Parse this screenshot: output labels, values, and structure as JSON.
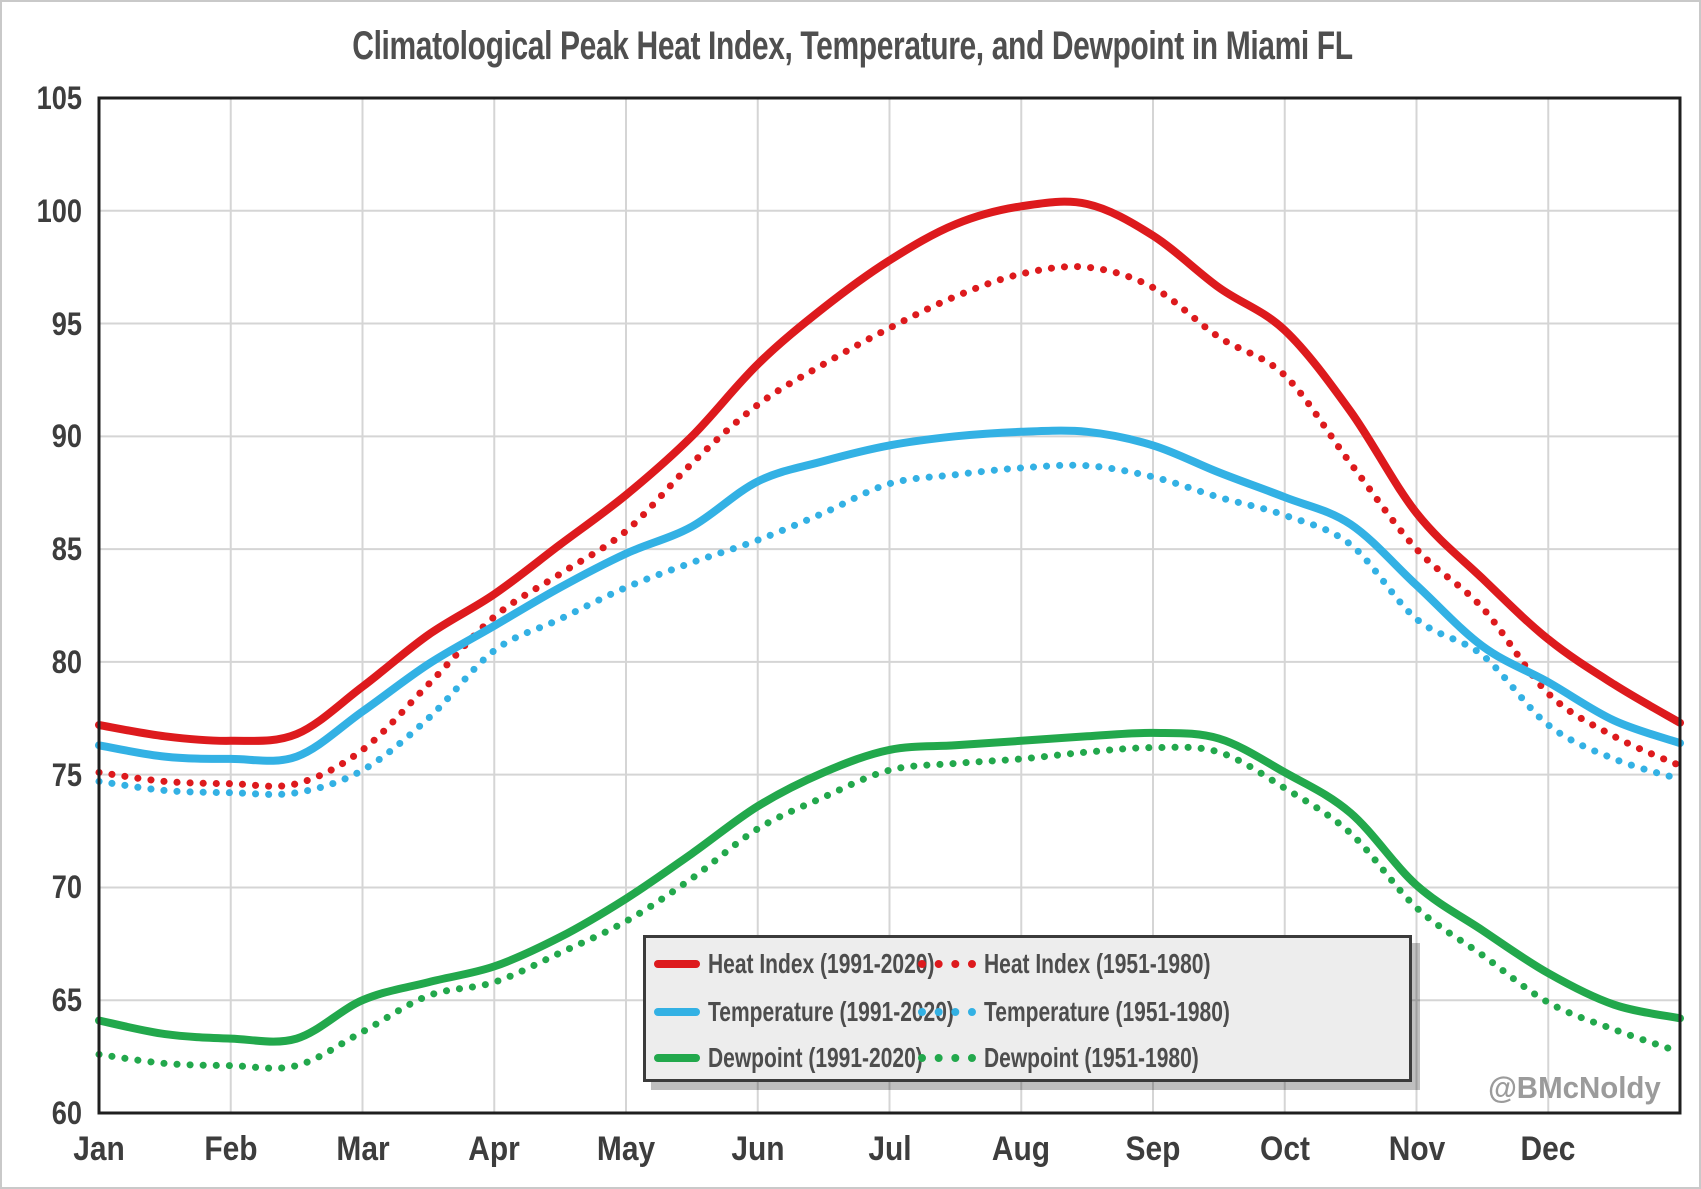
{
  "page": {
    "watermark": "@BMcNoldy"
  },
  "chart_data": {
    "type": "line",
    "title": "Climatological Peak Heat Index, Temperature, and Dewpoint in Miami FL",
    "xlabel": "",
    "ylabel": "",
    "ylim": [
      60,
      105
    ],
    "y_tick_step": 5,
    "y_tick_labels": [
      "60",
      "65",
      "70",
      "75",
      "80",
      "85",
      "90",
      "95",
      "100",
      "105"
    ],
    "x_tick_labels": [
      "Jan",
      "Feb",
      "Mar",
      "Apr",
      "May",
      "Jun",
      "Jul",
      "Aug",
      "Sep",
      "Oct",
      "Nov",
      "Dec"
    ],
    "grid": true,
    "legend_position": "inside-bottom-center",
    "x_months_semimonthly": [
      0,
      0.5,
      1,
      1.5,
      2,
      2.5,
      3,
      3.5,
      4,
      4.5,
      5,
      5.5,
      6,
      6.5,
      7,
      7.5,
      8,
      8.5,
      9,
      9.5,
      10,
      10.5,
      11,
      11.5,
      12
    ],
    "series": [
      {
        "id": "heat-index-1991-2020",
        "label": "Heat Index (1991-2020)",
        "color": "#dd1a1d",
        "style": "solid",
        "values": [
          77.2,
          76.7,
          76.5,
          76.8,
          78.9,
          81.2,
          83.0,
          85.2,
          87.4,
          90.0,
          93.2,
          95.7,
          97.8,
          99.4,
          100.2,
          100.3,
          98.9,
          96.6,
          94.7,
          91.1,
          86.6,
          83.7,
          81.0,
          79.0,
          77.3
        ]
      },
      {
        "id": "heat-index-1951-1980",
        "label": "Heat Index (1951-1980)",
        "color": "#dd1a1d",
        "style": "dotted",
        "values": [
          75.1,
          74.7,
          74.6,
          74.6,
          76.1,
          79.0,
          82.0,
          83.9,
          85.8,
          88.8,
          91.4,
          93.2,
          94.8,
          96.2,
          97.2,
          97.5,
          96.6,
          94.4,
          92.7,
          88.8,
          85.0,
          82.4,
          78.6,
          76.7,
          75.4
        ]
      },
      {
        "id": "temperature-1991-2020",
        "label": "Temperature (1991-2020)",
        "color": "#33b1e4",
        "style": "solid",
        "values": [
          76.3,
          75.8,
          75.7,
          75.8,
          77.8,
          79.9,
          81.6,
          83.3,
          84.8,
          86.0,
          88.0,
          88.9,
          89.6,
          90.0,
          90.2,
          90.2,
          89.6,
          88.4,
          87.3,
          86.1,
          83.4,
          80.7,
          79.1,
          77.4,
          76.4
        ]
      },
      {
        "id": "temperature-1951-1980",
        "label": "Temperature (1951-1980)",
        "color": "#33b1e4",
        "style": "dotted",
        "values": [
          74.7,
          74.3,
          74.2,
          74.2,
          75.2,
          77.5,
          80.5,
          81.9,
          83.3,
          84.4,
          85.4,
          86.6,
          87.9,
          88.3,
          88.6,
          88.7,
          88.2,
          87.3,
          86.5,
          85.2,
          81.9,
          80.3,
          77.2,
          75.7,
          74.8
        ]
      },
      {
        "id": "dewpoint-1991-2020",
        "label": "Dewpoint (1991-2020)",
        "color": "#22a84c",
        "style": "solid",
        "values": [
          64.1,
          63.5,
          63.3,
          63.3,
          65.0,
          65.8,
          66.5,
          67.8,
          69.5,
          71.5,
          73.6,
          75.1,
          76.1,
          76.3,
          76.5,
          76.7,
          76.85,
          76.6,
          75.1,
          73.3,
          70.1,
          68.1,
          66.2,
          64.8,
          64.2
        ]
      },
      {
        "id": "dewpoint-1951-1980",
        "label": "Dewpoint (1951-1980)",
        "color": "#22a84c",
        "style": "dotted",
        "values": [
          62.6,
          62.2,
          62.1,
          62.1,
          63.6,
          65.2,
          65.8,
          67.1,
          68.5,
          70.4,
          72.6,
          74.0,
          75.2,
          75.5,
          75.7,
          76.0,
          76.2,
          76.0,
          74.4,
          72.4,
          69.1,
          67.0,
          64.9,
          63.7,
          62.7
        ]
      }
    ],
    "colors": {
      "grid": "#d5d5d5",
      "frame": "#1f1f1f",
      "text": "#3d3d3d",
      "legend_bg": "#ededed"
    }
  }
}
